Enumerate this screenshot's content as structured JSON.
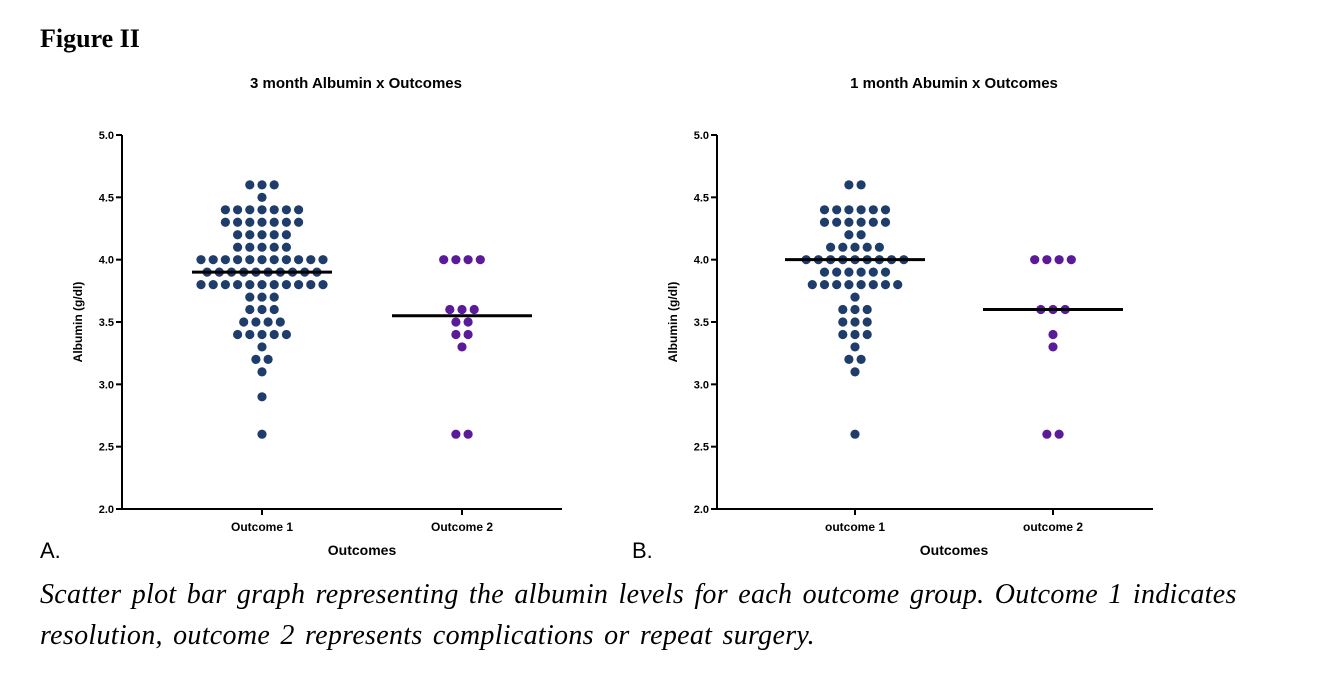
{
  "figure_title": "Figure II",
  "caption": "Scatter plot bar graph representing the albumin levels for each outcome group. Outcome 1 indicates resolution, outcome 2 represents complications or repeat surgery.",
  "colors": {
    "outcome1": "#1f3d6b",
    "outcome2": "#5a1a9a",
    "mean_line": "#000000"
  },
  "chart_data": [
    {
      "type": "scatter",
      "panel_label": "A.",
      "title": "3 month Albumin x Outcomes",
      "xlabel": "Outcomes",
      "ylabel": "Albumin (g/dl)",
      "ylim": [
        2.0,
        5.0
      ],
      "yticks": [
        "2.0",
        "2.5",
        "3.0",
        "3.5",
        "4.0",
        "4.5",
        "5.0"
      ],
      "categories": [
        "Outcome 1",
        "Outcome 2"
      ],
      "grid": false,
      "series": [
        {
          "category": "Outcome 1",
          "mean": 3.9,
          "values": [
            4.6,
            4.6,
            4.6,
            4.5,
            4.4,
            4.4,
            4.4,
            4.4,
            4.4,
            4.4,
            4.4,
            4.3,
            4.3,
            4.3,
            4.3,
            4.3,
            4.3,
            4.3,
            4.2,
            4.2,
            4.2,
            4.2,
            4.2,
            4.1,
            4.1,
            4.1,
            4.1,
            4.1,
            4.0,
            4.0,
            4.0,
            4.0,
            4.0,
            4.0,
            4.0,
            4.0,
            4.0,
            4.0,
            4.0,
            3.9,
            3.9,
            3.9,
            3.9,
            3.9,
            3.9,
            3.9,
            3.9,
            3.9,
            3.9,
            3.8,
            3.8,
            3.8,
            3.8,
            3.8,
            3.8,
            3.8,
            3.8,
            3.8,
            3.8,
            3.8,
            3.7,
            3.7,
            3.7,
            3.6,
            3.6,
            3.6,
            3.5,
            3.5,
            3.5,
            3.5,
            3.4,
            3.4,
            3.4,
            3.4,
            3.4,
            3.3,
            3.2,
            3.2,
            3.1,
            2.9,
            2.6
          ]
        },
        {
          "category": "Outcome 2",
          "mean": 3.55,
          "values": [
            4.0,
            4.0,
            4.0,
            4.0,
            3.6,
            3.6,
            3.6,
            3.5,
            3.5,
            3.4,
            3.4,
            3.3,
            2.6,
            2.6
          ]
        }
      ]
    },
    {
      "type": "scatter",
      "panel_label": "B.",
      "title": "1 month Abumin x Outcomes",
      "xlabel": "Outcomes",
      "ylabel": "Albumin (g/dl)",
      "ylim": [
        2.0,
        5.0
      ],
      "yticks": [
        "2.0",
        "2.5",
        "3.0",
        "3.5",
        "4.0",
        "4.5",
        "5.0"
      ],
      "categories": [
        "outcome 1",
        "outcome 2"
      ],
      "grid": false,
      "series": [
        {
          "category": "outcome 1",
          "mean": 4.0,
          "values": [
            4.6,
            4.6,
            4.4,
            4.4,
            4.4,
            4.4,
            4.4,
            4.4,
            4.3,
            4.3,
            4.3,
            4.3,
            4.3,
            4.3,
            4.2,
            4.2,
            4.1,
            4.1,
            4.1,
            4.1,
            4.1,
            4.0,
            4.0,
            4.0,
            4.0,
            4.0,
            4.0,
            4.0,
            4.0,
            4.0,
            3.9,
            3.9,
            3.9,
            3.9,
            3.9,
            3.9,
            3.8,
            3.8,
            3.8,
            3.8,
            3.8,
            3.8,
            3.8,
            3.8,
            3.7,
            3.6,
            3.6,
            3.6,
            3.5,
            3.5,
            3.5,
            3.4,
            3.4,
            3.4,
            3.3,
            3.2,
            3.2,
            3.1,
            2.6
          ]
        },
        {
          "category": "outcome 2",
          "mean": 3.6,
          "values": [
            4.0,
            4.0,
            4.0,
            4.0,
            3.6,
            3.6,
            3.6,
            3.4,
            3.3,
            2.6,
            2.6
          ]
        }
      ]
    }
  ]
}
